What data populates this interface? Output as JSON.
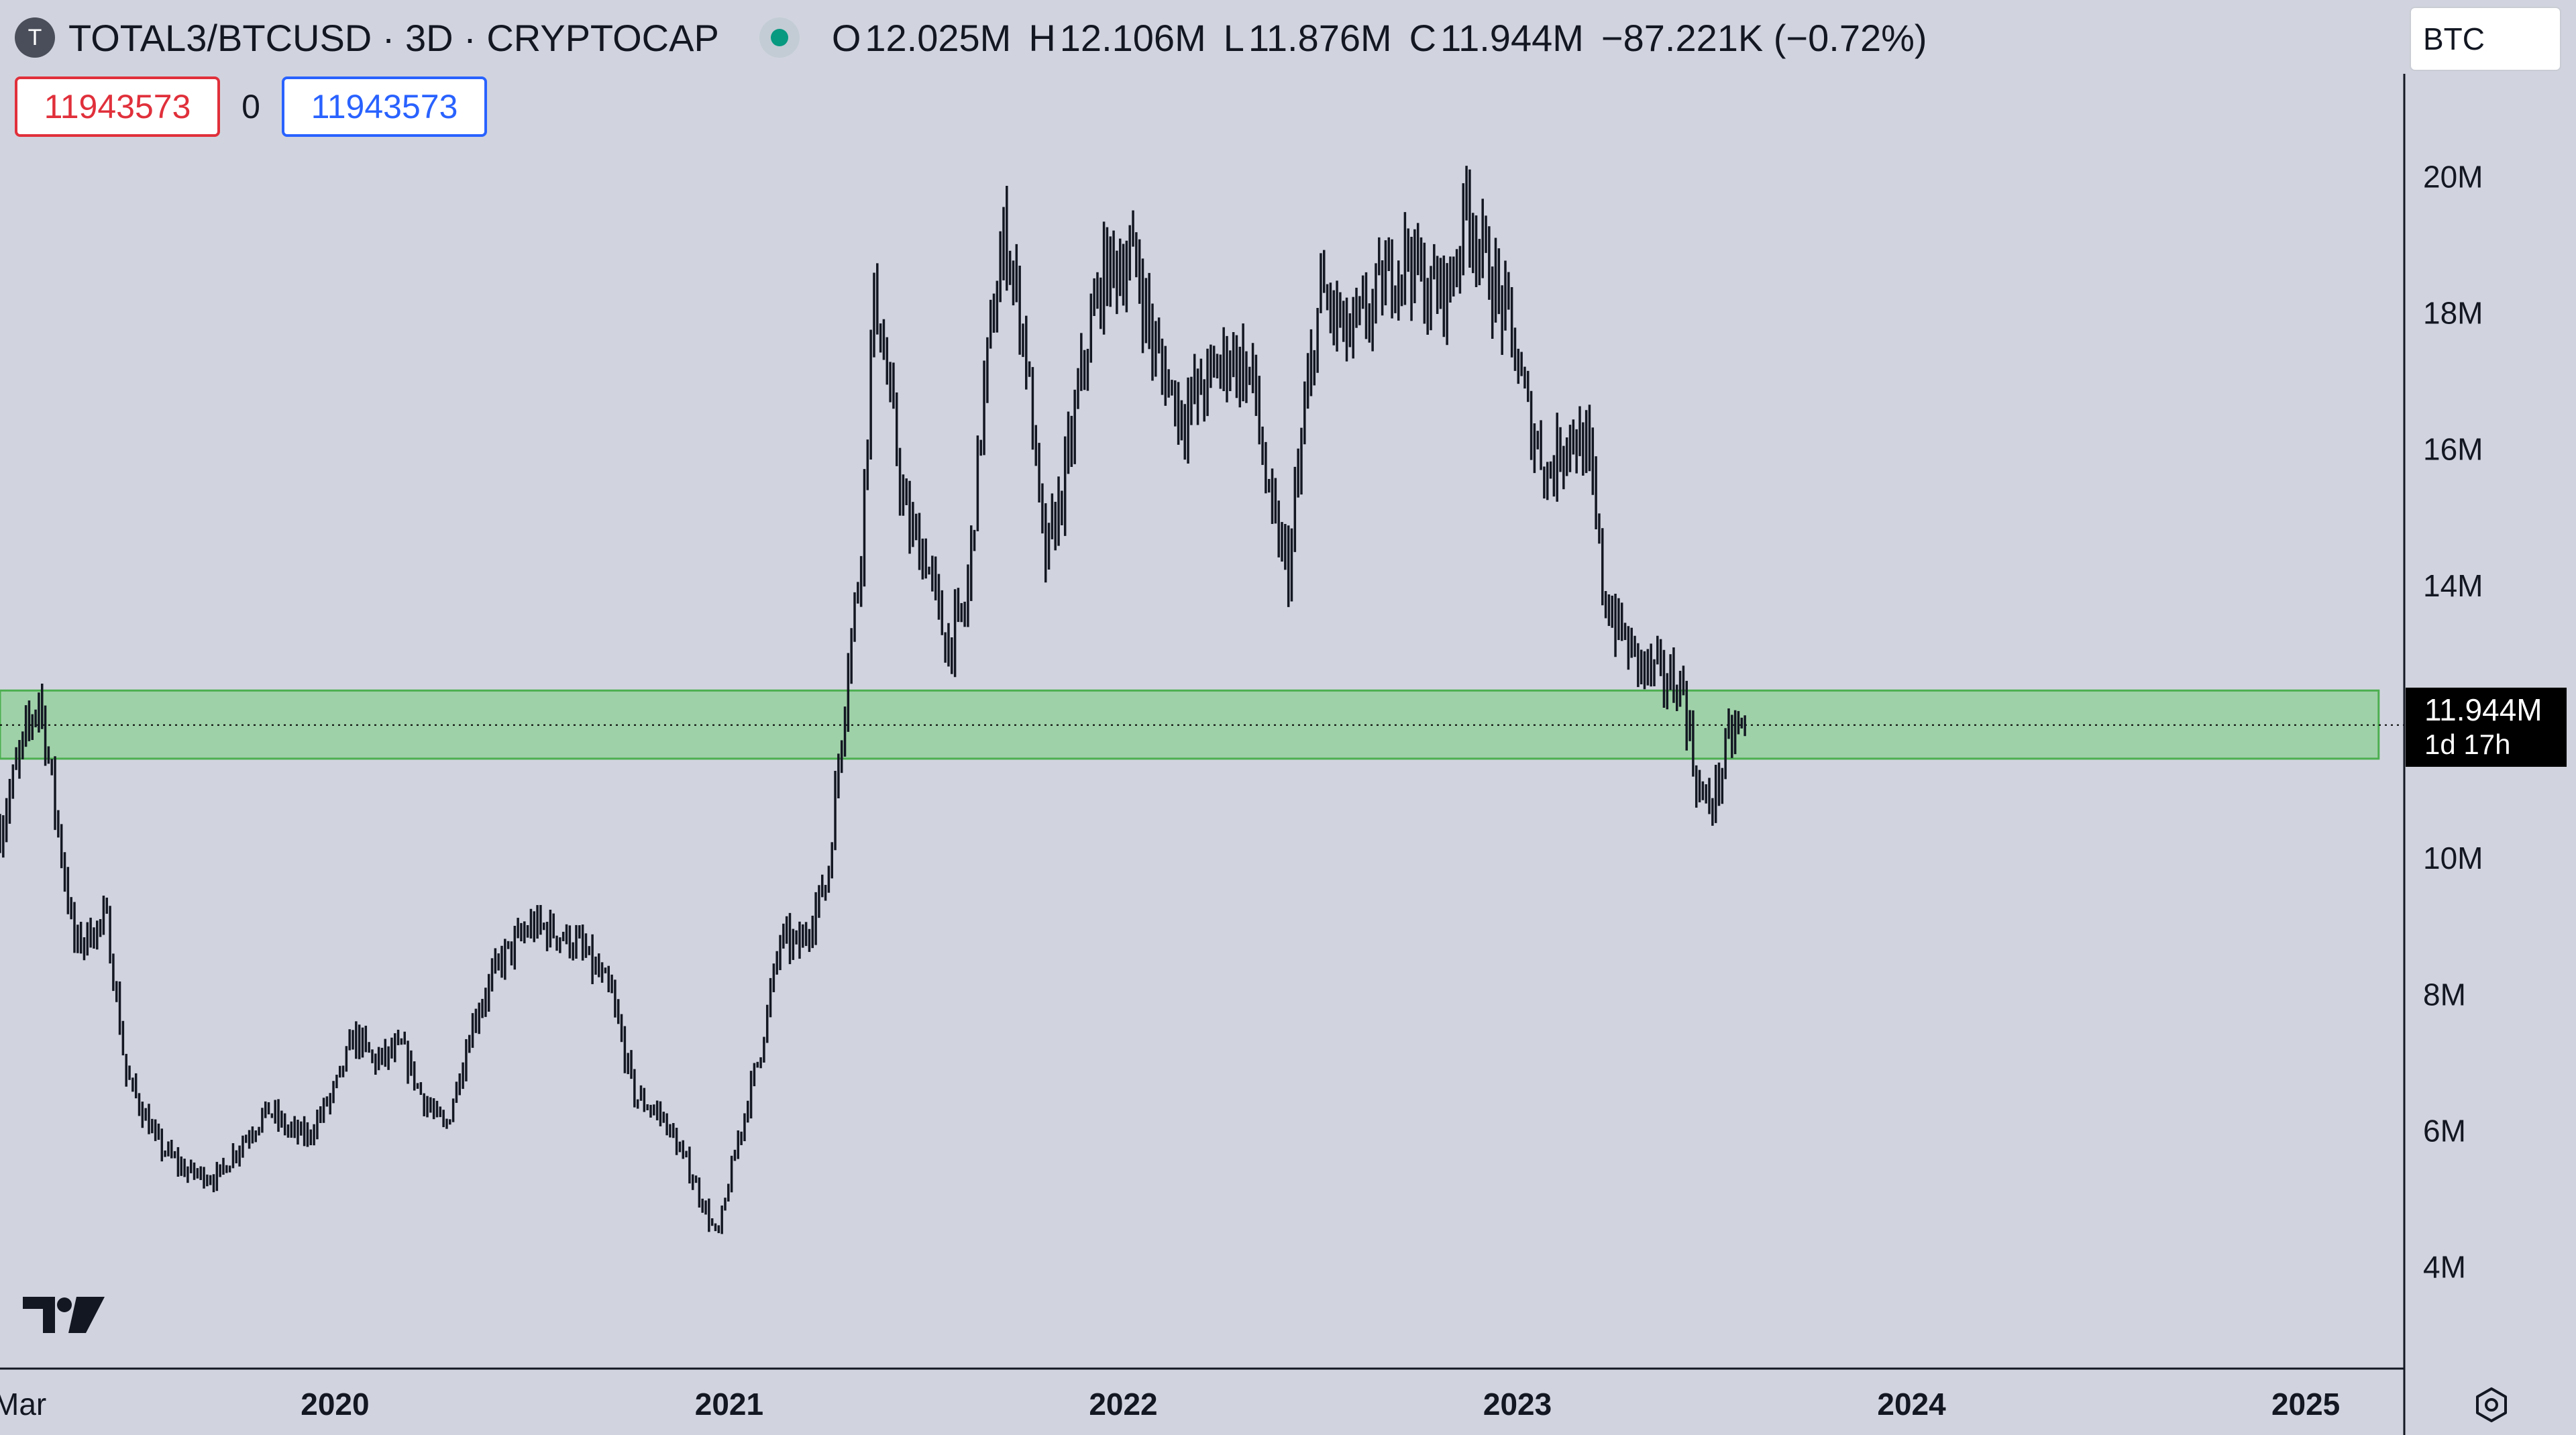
{
  "header": {
    "symbol_icon": "T",
    "title": "TOTAL3/BTCUSD · 3D · CRYPTOCAP",
    "ohlc": {
      "open_label": "O",
      "open": "12.025M",
      "high_label": "H",
      "high": "12.106M",
      "low_label": "L",
      "low": "11.876M",
      "close_label": "C",
      "close": "11.944M",
      "change": "−87.221K (−0.72%)"
    },
    "status_color": "#089981"
  },
  "trade": {
    "sell": "11943573",
    "spread": "0",
    "buy": "11943573",
    "sell_color": "#e0303b",
    "buy_color": "#2962ff"
  },
  "currency": "BTC",
  "last_price": {
    "value": "11.944M",
    "countdown": "1d 17h"
  },
  "icons": {
    "logo": "tradingview-logo-icon",
    "settings": "settings-gear-icon"
  },
  "chart_data": {
    "type": "candlestick",
    "ylim": [
      2.5,
      21.5
    ],
    "y_ticks": [
      {
        "v": 20,
        "label": "20M"
      },
      {
        "v": 18,
        "label": "18M"
      },
      {
        "v": 16,
        "label": "16M"
      },
      {
        "v": 14,
        "label": "14M"
      },
      {
        "v": 10,
        "label": "10M"
      },
      {
        "v": 8,
        "label": "8M"
      },
      {
        "v": 6,
        "label": "6M"
      },
      {
        "v": 4,
        "label": "4M"
      }
    ],
    "x_ticks": [
      {
        "t": 2019.2,
        "label": "Mar"
      },
      {
        "t": 2020.0,
        "label": "2020"
      },
      {
        "t": 2021.0,
        "label": "2021"
      },
      {
        "t": 2022.0,
        "label": "2022"
      },
      {
        "t": 2023.0,
        "label": "2023"
      },
      {
        "t": 2024.0,
        "label": "2024"
      },
      {
        "t": 2025.0,
        "label": "2025"
      }
    ],
    "xlim": [
      2019.15,
      2025.25
    ],
    "last_value": 11.944,
    "zone": {
      "x_start": 2019.15,
      "x_end": 2025.185,
      "y_low": 11.45,
      "y_high": 12.45,
      "color": "#9fd1a8",
      "border": "#4caf50"
    },
    "path": [
      [
        2019.15,
        10.4
      ],
      [
        2019.2,
        11.5
      ],
      [
        2019.25,
        12.4
      ],
      [
        2019.3,
        10.3
      ],
      [
        2019.34,
        8.7
      ],
      [
        2019.42,
        9.1
      ],
      [
        2019.47,
        6.8
      ],
      [
        2019.55,
        5.8
      ],
      [
        2019.62,
        5.4
      ],
      [
        2019.7,
        5.3
      ],
      [
        2019.76,
        5.8
      ],
      [
        2019.83,
        6.3
      ],
      [
        2019.88,
        6.0
      ],
      [
        2019.93,
        5.9
      ],
      [
        2020.0,
        6.6
      ],
      [
        2020.05,
        7.4
      ],
      [
        2020.1,
        7.0
      ],
      [
        2020.17,
        7.2
      ],
      [
        2020.22,
        6.5
      ],
      [
        2020.28,
        6.0
      ],
      [
        2020.35,
        7.6
      ],
      [
        2020.42,
        8.5
      ],
      [
        2020.5,
        9.0
      ],
      [
        2020.56,
        8.9
      ],
      [
        2020.62,
        8.7
      ],
      [
        2020.7,
        8.0
      ],
      [
        2020.76,
        6.5
      ],
      [
        2020.83,
        6.2
      ],
      [
        2020.9,
        5.4
      ],
      [
        2020.97,
        4.4
      ],
      [
        2021.02,
        5.8
      ],
      [
        2021.08,
        7.2
      ],
      [
        2021.13,
        8.8
      ],
      [
        2021.18,
        8.7
      ],
      [
        2021.25,
        9.7
      ],
      [
        2021.3,
        12.8
      ],
      [
        2021.33,
        14.2
      ],
      [
        2021.37,
        18.4
      ],
      [
        2021.4,
        17.0
      ],
      [
        2021.45,
        14.9
      ],
      [
        2021.5,
        14.4
      ],
      [
        2021.55,
        13.1
      ],
      [
        2021.6,
        13.6
      ],
      [
        2021.65,
        17.1
      ],
      [
        2021.7,
        19.2
      ],
      [
        2021.75,
        17.6
      ],
      [
        2021.8,
        14.3
      ],
      [
        2021.85,
        15.5
      ],
      [
        2021.9,
        17.3
      ],
      [
        2021.95,
        18.6
      ],
      [
        2022.03,
        18.8
      ],
      [
        2022.08,
        17.4
      ],
      [
        2022.15,
        16.5
      ],
      [
        2022.2,
        16.9
      ],
      [
        2022.27,
        17.4
      ],
      [
        2022.33,
        17.0
      ],
      [
        2022.37,
        15.1
      ],
      [
        2022.42,
        14.2
      ],
      [
        2022.45,
        16.0
      ],
      [
        2022.5,
        18.3
      ],
      [
        2022.57,
        17.6
      ],
      [
        2022.62,
        18.0
      ],
      [
        2022.68,
        18.6
      ],
      [
        2022.72,
        18.9
      ],
      [
        2022.77,
        18.3
      ],
      [
        2022.83,
        18.4
      ],
      [
        2022.87,
        19.6
      ],
      [
        2022.92,
        18.7
      ],
      [
        2022.98,
        17.8
      ],
      [
        2023.03,
        16.4
      ],
      [
        2023.08,
        15.6
      ],
      [
        2023.13,
        16.3
      ],
      [
        2023.18,
        15.9
      ],
      [
        2023.22,
        13.8
      ],
      [
        2023.28,
        13.1
      ],
      [
        2023.32,
        12.8
      ],
      [
        2023.38,
        12.6
      ],
      [
        2023.42,
        12.5
      ],
      [
        2023.45,
        11.2
      ],
      [
        2023.48,
        10.7
      ],
      [
        2023.51,
        11.1
      ],
      [
        2023.54,
        11.8
      ],
      [
        2023.58,
        11.95
      ]
    ]
  }
}
